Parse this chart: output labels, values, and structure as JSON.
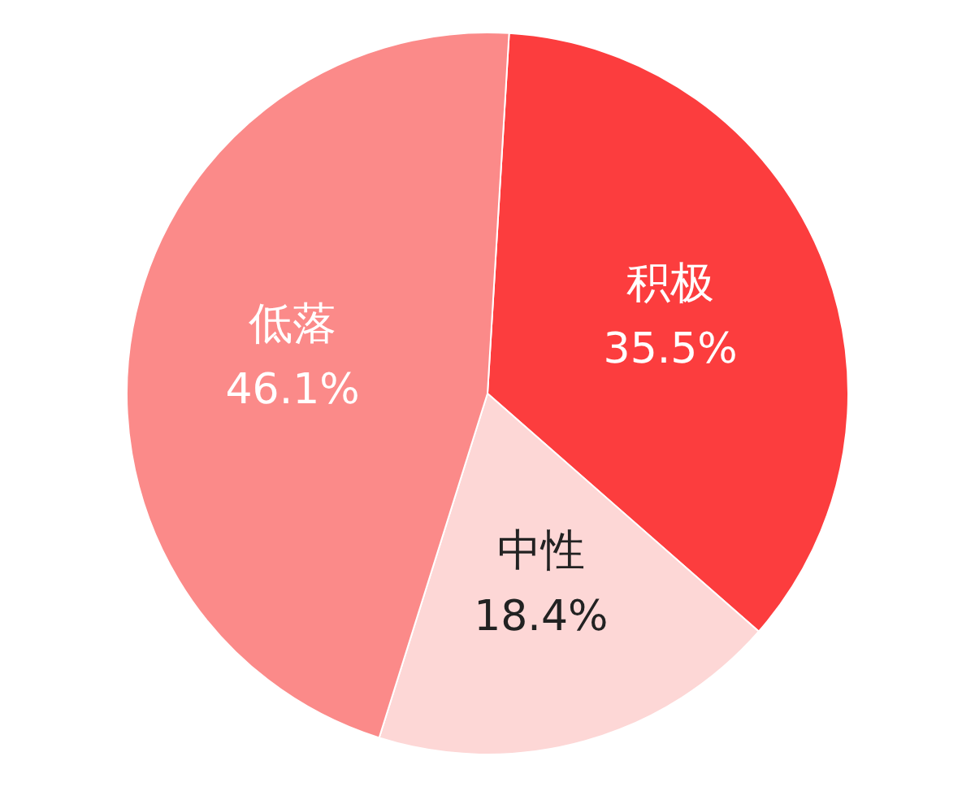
{
  "chart_data": {
    "type": "pie",
    "categories": [
      "积极",
      "中性",
      "低落"
    ],
    "values": [
      35.5,
      18.4,
      46.1
    ],
    "value_labels": [
      "35.5%",
      "18.4%",
      "46.1%"
    ],
    "colors": [
      "#fc3d3e",
      "#fdd7d6",
      "#fb8a89"
    ],
    "legend": false
  }
}
